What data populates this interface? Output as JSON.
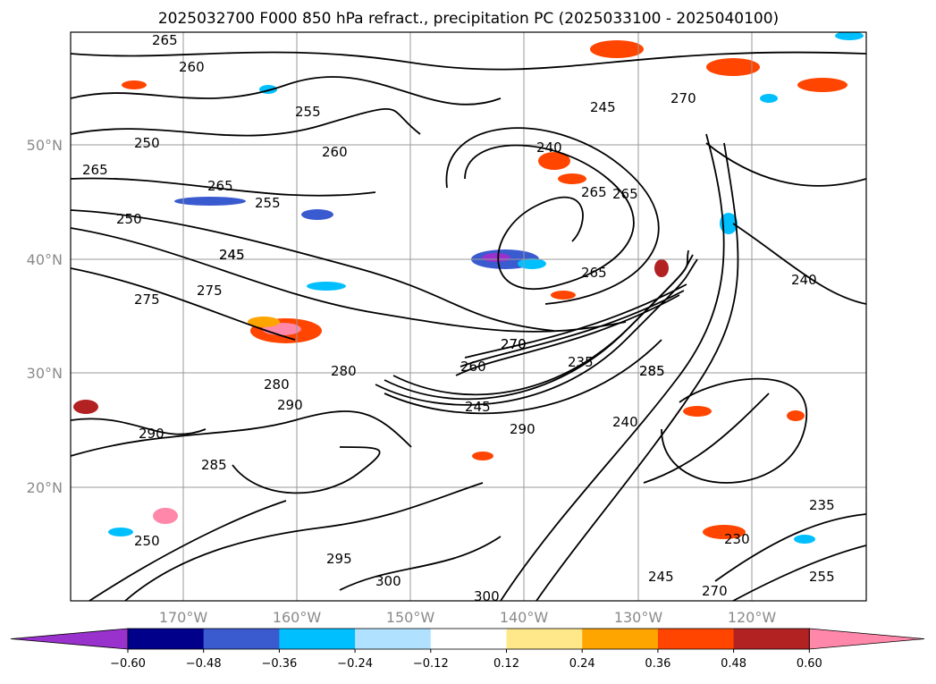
{
  "title": "2025032700 F000 850 hPa refract., precipitation PC (2025033100 - 2025040100)",
  "lat_labels": [
    "50°N",
    "40°N",
    "30°N",
    "20°N"
  ],
  "lon_labels": [
    "170°W",
    "160°W",
    "150°W",
    "140°W",
    "130°W",
    "120°W"
  ],
  "colorbar": {
    "ticks": [
      "−0.60",
      "−0.48",
      "−0.36",
      "−0.24",
      "−0.12",
      "0.12",
      "0.24",
      "0.36",
      "0.48",
      "0.60"
    ],
    "colors": [
      "#9932cc",
      "#00008b",
      "#3a5bd0",
      "#00bfff",
      "#b0e2ff",
      "#ffffff",
      "#ffe88a",
      "#ffa500",
      "#ff4500",
      "#b22222",
      "#ff88aa"
    ]
  },
  "contour_labels": [
    "265",
    "260",
    "255",
    "250",
    "245",
    "240",
    "265",
    "270",
    "250",
    "245",
    "255",
    "260",
    "265",
    "270",
    "275",
    "280",
    "285",
    "290",
    "275",
    "280",
    "290",
    "295",
    "300",
    "265",
    "265",
    "240",
    "270",
    "260",
    "245",
    "235",
    "240",
    "285",
    "290",
    "265",
    "235",
    "230",
    "245",
    "255",
    "250",
    "285",
    "300",
    "270",
    "245"
  ],
  "colors": {
    "gridline": "#999999",
    "contour": "#000000",
    "tick_label": "#8a8a8a"
  }
}
